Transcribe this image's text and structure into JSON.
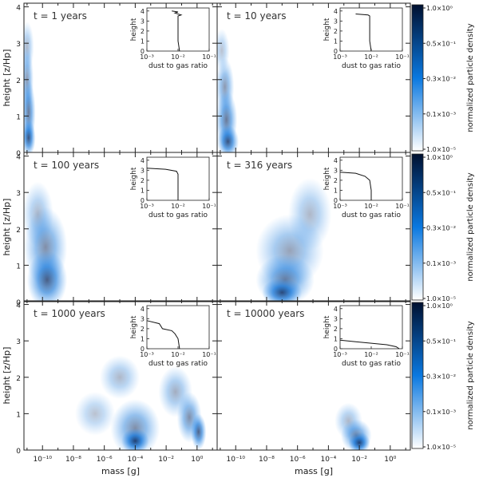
{
  "chart_data": {
    "type": "heatmap",
    "x_label": "mass [g]",
    "y_label": "height [z/Hp]",
    "x_scale": "log",
    "x_ticks": [
      "10⁻¹⁰",
      "10⁻⁸",
      "10⁻⁶",
      "10⁻⁴",
      "10⁻²",
      "10⁰"
    ],
    "x_tick_values": [
      -10,
      -8,
      -6,
      -4,
      -2,
      0
    ],
    "y_ticks": [
      "0",
      "1",
      "2",
      "3",
      "4"
    ],
    "y_range": [
      0,
      4.1
    ],
    "x_log_range": [
      -11.2,
      1.3
    ],
    "colorbar": {
      "label": "normalized particle density",
      "ticks": [
        "1.0×10⁻⁵",
        "0.1×10⁻³",
        "0.3×10⁻²",
        "0.5×10⁻¹",
        "1.0×10⁰"
      ],
      "colors": [
        "#ffffff",
        "#0a78e0",
        "#001030"
      ]
    },
    "inset": {
      "x_label": "dust to gas ratio",
      "y_label": "height",
      "x_ticks": [
        "10⁻³",
        "10⁻²",
        "10⁻¹"
      ],
      "y_ticks": [
        "0",
        "1",
        "2",
        "3",
        "4"
      ]
    },
    "panels": [
      {
        "time_label": "t = 1 years",
        "blobs": [
          {
            "logm": -11.0,
            "z": 2.9,
            "rx": 0.45,
            "ry": 0.7,
            "a": 0.35
          },
          {
            "logm": -11.0,
            "z": 2.0,
            "rx": 0.42,
            "ry": 0.9,
            "a": 0.5
          },
          {
            "logm": -10.9,
            "z": 1.1,
            "rx": 0.45,
            "ry": 0.9,
            "a": 0.65
          },
          {
            "logm": -10.9,
            "z": 0.4,
            "rx": 0.45,
            "ry": 0.5,
            "a": 0.8
          }
        ],
        "profile": [
          [
            -2.2,
            4.0
          ],
          [
            -2.0,
            3.9
          ],
          [
            -2.1,
            3.8
          ],
          [
            -1.9,
            3.6
          ],
          [
            -2.0,
            3.5
          ],
          [
            -2.0,
            3.0
          ],
          [
            -2.0,
            2.0
          ],
          [
            -2.0,
            1.0
          ],
          [
            -1.95,
            0.0
          ]
        ]
      },
      {
        "time_label": "t = 10 years",
        "blobs": [
          {
            "logm": -10.9,
            "z": 2.8,
            "rx": 0.5,
            "ry": 0.6,
            "a": 0.3
          },
          {
            "logm": -10.7,
            "z": 1.8,
            "rx": 0.6,
            "ry": 0.8,
            "a": 0.5
          },
          {
            "logm": -10.6,
            "z": 0.9,
            "rx": 0.7,
            "ry": 0.8,
            "a": 0.65
          },
          {
            "logm": -10.5,
            "z": 0.3,
            "rx": 0.7,
            "ry": 0.45,
            "a": 0.8
          }
        ],
        "profile": [
          [
            -2.5,
            3.7
          ],
          [
            -2.1,
            3.6
          ],
          [
            -2.05,
            3.5
          ],
          [
            -2.05,
            3.0
          ],
          [
            -2.05,
            2.0
          ],
          [
            -2.05,
            1.0
          ],
          [
            -2.0,
            0.0
          ]
        ]
      },
      {
        "time_label": "t = 100 years",
        "blobs": [
          {
            "logm": -10.3,
            "z": 2.4,
            "rx": 1.0,
            "ry": 0.9,
            "a": 0.35
          },
          {
            "logm": -9.8,
            "z": 1.5,
            "rx": 1.4,
            "ry": 1.1,
            "a": 0.55
          },
          {
            "logm": -9.7,
            "z": 0.6,
            "rx": 1.3,
            "ry": 0.8,
            "a": 0.75
          }
        ],
        "profile": [
          [
            -3.0,
            3.2
          ],
          [
            -2.4,
            3.1
          ],
          [
            -2.05,
            2.9
          ],
          [
            -2.0,
            2.6
          ],
          [
            -2.0,
            2.0
          ],
          [
            -2.0,
            1.0
          ],
          [
            -2.0,
            0.0
          ]
        ]
      },
      {
        "time_label": "t = 316 years",
        "blobs": [
          {
            "logm": -5.2,
            "z": 2.4,
            "rx": 1.4,
            "ry": 1.0,
            "a": 0.35
          },
          {
            "logm": -6.5,
            "z": 1.4,
            "rx": 2.2,
            "ry": 1.0,
            "a": 0.45
          },
          {
            "logm": -6.8,
            "z": 0.6,
            "rx": 1.9,
            "ry": 0.7,
            "a": 0.6
          },
          {
            "logm": -7.0,
            "z": 0.25,
            "rx": 1.3,
            "ry": 0.4,
            "a": 0.8
          }
        ],
        "profile": [
          [
            -3.0,
            2.8
          ],
          [
            -2.5,
            2.7
          ],
          [
            -2.2,
            2.4
          ],
          [
            -2.05,
            2.0
          ],
          [
            -2.0,
            1.0
          ],
          [
            -2.0,
            0.0
          ]
        ]
      },
      {
        "time_label": "t = 1000 years",
        "blobs": [
          {
            "logm": -5.0,
            "z": 2.0,
            "rx": 1.3,
            "ry": 0.6,
            "a": 0.35
          },
          {
            "logm": -6.6,
            "z": 1.0,
            "rx": 1.3,
            "ry": 0.6,
            "a": 0.3
          },
          {
            "logm": -4.0,
            "z": 0.6,
            "rx": 1.6,
            "ry": 0.8,
            "a": 0.55
          },
          {
            "logm": -4.0,
            "z": 0.25,
            "rx": 0.9,
            "ry": 0.35,
            "a": 0.85
          },
          {
            "logm": -1.4,
            "z": 1.6,
            "rx": 1.1,
            "ry": 0.7,
            "a": 0.4
          },
          {
            "logm": -0.5,
            "z": 0.9,
            "rx": 0.8,
            "ry": 0.7,
            "a": 0.55
          },
          {
            "logm": 0.1,
            "z": 0.5,
            "rx": 0.5,
            "ry": 0.5,
            "a": 0.75
          }
        ],
        "profile": [
          [
            -3.0,
            2.8
          ],
          [
            -2.6,
            2.5
          ],
          [
            -2.5,
            2.0
          ],
          [
            -2.2,
            1.8
          ],
          [
            -2.1,
            1.5
          ],
          [
            -2.0,
            1.0
          ],
          [
            -1.95,
            0.0
          ]
        ]
      },
      {
        "time_label": "t = 10000 years",
        "blobs": [
          {
            "logm": -2.7,
            "z": 0.8,
            "rx": 0.9,
            "ry": 0.5,
            "a": 0.35
          },
          {
            "logm": -2.2,
            "z": 0.4,
            "rx": 1.0,
            "ry": 0.45,
            "a": 0.6
          },
          {
            "logm": -2.0,
            "z": 0.2,
            "rx": 0.7,
            "ry": 0.3,
            "a": 0.85
          }
        ],
        "profile": [
          [
            -3.0,
            0.85
          ],
          [
            -2.5,
            0.7
          ],
          [
            -2.0,
            0.55
          ],
          [
            -1.5,
            0.4
          ],
          [
            -1.2,
            0.2
          ],
          [
            -1.1,
            0.0
          ]
        ]
      }
    ]
  }
}
